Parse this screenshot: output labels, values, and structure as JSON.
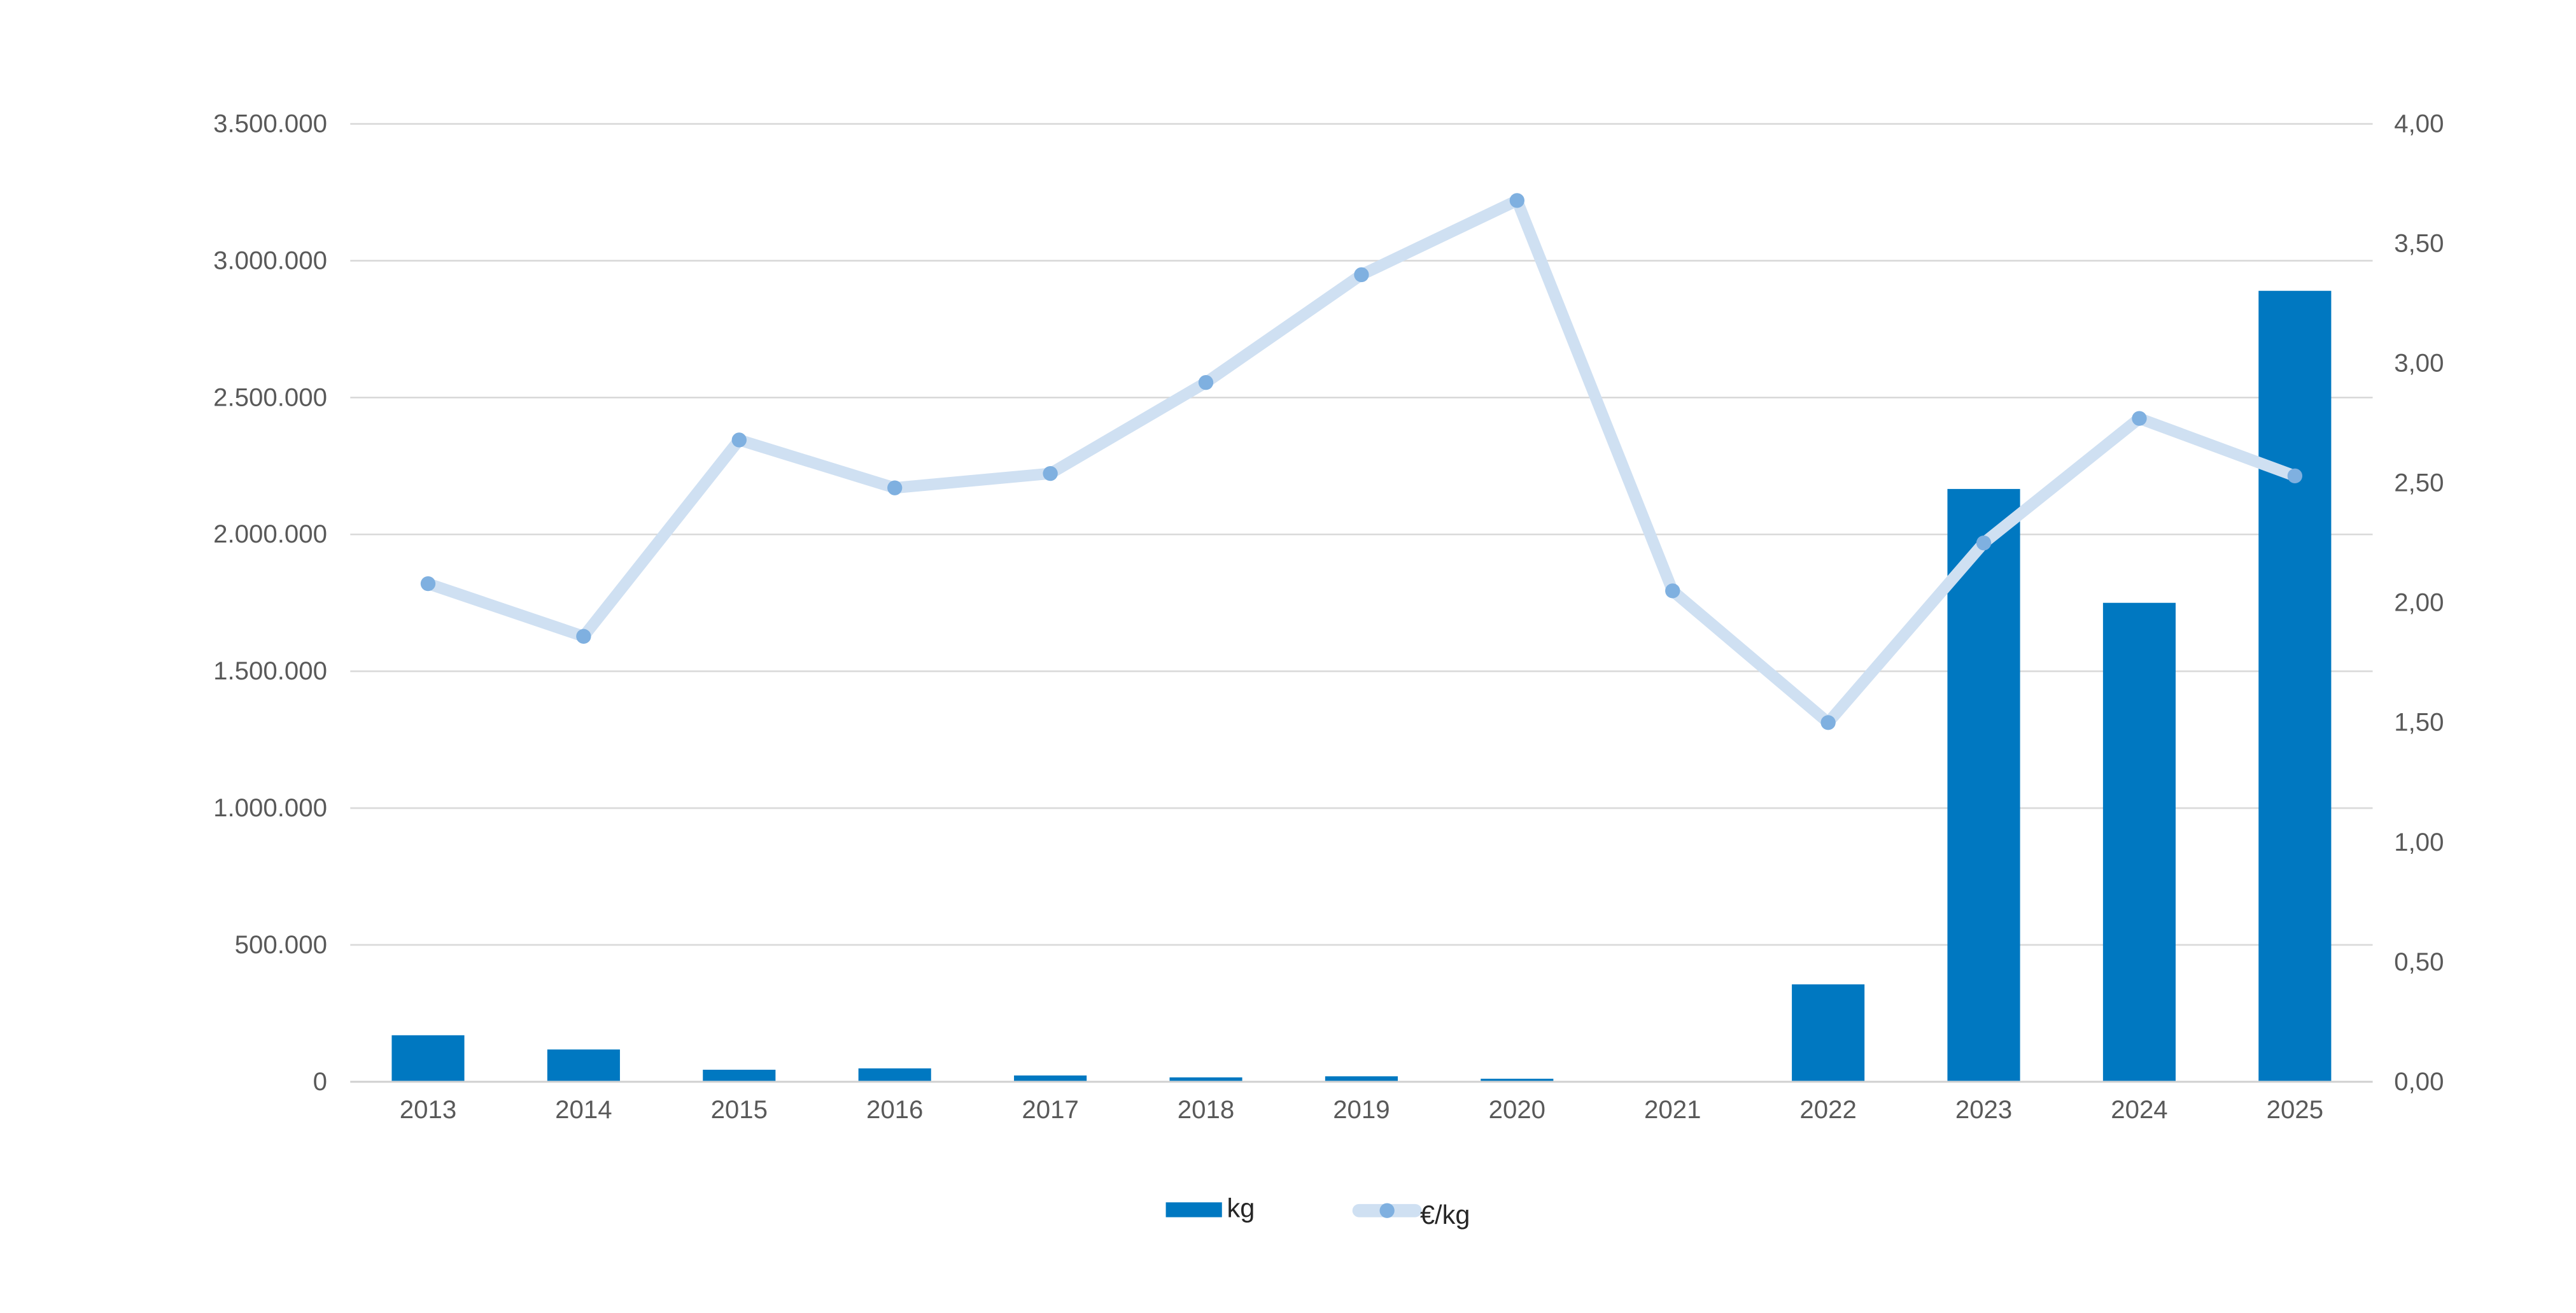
{
  "chart_data": {
    "type": "bar+line",
    "categories": [
      "2013",
      "2014",
      "2015",
      "2016",
      "2017",
      "2018",
      "2019",
      "2020",
      "2021",
      "2022",
      "2023",
      "2024",
      "2025"
    ],
    "series": [
      {
        "name": "kg",
        "type": "bar",
        "axis": "left",
        "color": "#0078C1",
        "values": [
          170000,
          118000,
          44000,
          49000,
          23000,
          16000,
          20000,
          11000,
          0,
          356000,
          2166000,
          1750000,
          2890000
        ]
      },
      {
        "name": "€/kg",
        "type": "line",
        "axis": "right",
        "color": "#CFE0F2",
        "marker_color": "#7FB0E0",
        "values": [
          2.08,
          1.86,
          2.68,
          2.48,
          2.54,
          2.92,
          3.37,
          3.68,
          2.05,
          1.5,
          2.25,
          2.77,
          2.53
        ]
      }
    ],
    "left_axis": {
      "ylim": [
        0,
        3500000
      ],
      "ticks": [
        "0",
        "500.000",
        "1.000.000",
        "1.500.000",
        "2.000.000",
        "2.500.000",
        "3.000.000",
        "3.500.000"
      ]
    },
    "right_axis": {
      "ylim": [
        0,
        4
      ],
      "ticks": [
        "0,00",
        "0,50",
        "1,00",
        "1,50",
        "2,00",
        "2,50",
        "3,00",
        "3,50",
        "4,00"
      ]
    },
    "grid": true,
    "legend_position": "bottom"
  }
}
